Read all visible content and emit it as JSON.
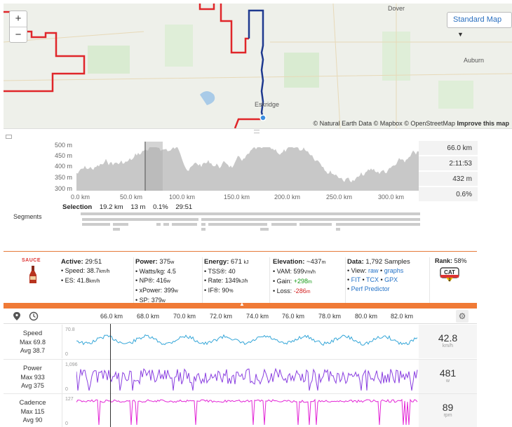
{
  "map": {
    "zoom_in": "+",
    "zoom_out": "−",
    "style_select": "Standard Map",
    "attribution_prefix": "© Natural Earth Data © Mapbox © OpenStreetMap",
    "attribution_link": "Improve this map",
    "towns": [
      "Dover",
      "Auburn",
      "Eskridge"
    ]
  },
  "elevation": {
    "y_ticks": [
      "500 m",
      "450 m",
      "400 m",
      "350 m",
      "300 m"
    ],
    "x_ticks": [
      "0.0 km",
      "50.0 km",
      "100.0 km",
      "150.0 km",
      "200.0 km",
      "250.0 km",
      "300.0 km"
    ],
    "stats": [
      "66.0 km",
      "2:11:53",
      "432 m",
      "0.6%"
    ],
    "selection": {
      "label": "Selection",
      "distance": "19.2 km",
      "climb": "13 m",
      "grade": "0.1%",
      "time": "29:51"
    },
    "segments_label": "Segments"
  },
  "info": {
    "logo": "SAUCE",
    "active": {
      "label": "Active:",
      "value": "29:51",
      "items": [
        {
          "label": "Speed:",
          "value": "38.7",
          "unit": "km/h"
        },
        {
          "label": "ES:",
          "value": "41.8",
          "unit": "km/h"
        }
      ]
    },
    "power": {
      "label": "Power:",
      "value": "375",
      "unit": "w",
      "items": [
        {
          "label": "Watts/kg:",
          "value": "4.5",
          "unit": ""
        },
        {
          "label": "NP®:",
          "value": "416",
          "unit": "w"
        },
        {
          "label": "xPower:",
          "value": "399",
          "unit": "w"
        },
        {
          "label": "SP:",
          "value": "379",
          "unit": "w"
        }
      ]
    },
    "energy": {
      "label": "Energy:",
      "value": "671",
      "unit": "kJ",
      "items": [
        {
          "label": "TSS®:",
          "value": "40",
          "unit": ""
        },
        {
          "label": "Rate:",
          "value": "1349",
          "unit": "kJ/h"
        },
        {
          "label": "IF®:",
          "value": "90",
          "unit": "%"
        }
      ]
    },
    "elevation": {
      "label": "Elevation:",
      "value": "~437",
      "unit": "m",
      "items": [
        {
          "label": "VAM:",
          "value": "599",
          "unit": "Vm/h"
        },
        {
          "label": "Gain:",
          "value": "+298",
          "unit": "m"
        },
        {
          "label": "Loss:",
          "value": "-286",
          "unit": "m"
        }
      ]
    },
    "data": {
      "label": "Data:",
      "value": "1,792 Samples",
      "view_label": "View:",
      "raw": "raw",
      "graphs": "graphs",
      "fit": "FIT",
      "tcx": "TCX",
      "gpx": "GPX",
      "predictor": "Perf Predictor"
    },
    "rank": {
      "label": "Rank:",
      "value": "58%",
      "cat": "CAT",
      "cat_num": "2"
    }
  },
  "streams_header": {
    "x_ticks": [
      "66.0 km",
      "68.0 km",
      "70.0 km",
      "72.0 km",
      "74.0 km",
      "76.0 km",
      "78.0 km",
      "80.0 km",
      "82.0 km"
    ]
  },
  "streams": [
    {
      "name": "Speed",
      "max": "Max 69.8",
      "avg": "Avg 38.7",
      "ymax": "70.8",
      "ymin": "0",
      "value": "42.8",
      "unit": "km/h",
      "color": "#35a6d8"
    },
    {
      "name": "Power",
      "max": "Max 933",
      "avg": "Avg 375",
      "ymax": "1,096",
      "ymin": "0",
      "value": "481",
      "unit": "w",
      "color": "#8a3fe0"
    },
    {
      "name": "Cadence",
      "max": "Max 115",
      "avg": "Avg 90",
      "ymax": "127",
      "ymin": "0",
      "value": "89",
      "unit": "rpm",
      "color": "#e326d6"
    }
  ]
}
